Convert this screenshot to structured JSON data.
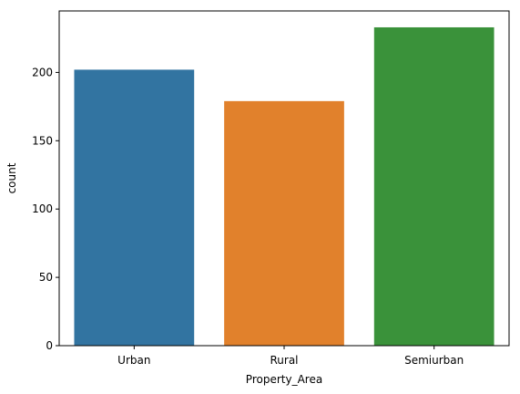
{
  "chart_data": {
    "type": "bar",
    "categories": [
      "Urban",
      "Rural",
      "Semiurban"
    ],
    "values": [
      202,
      179,
      233
    ],
    "colors": [
      "#3274a1",
      "#e1812c",
      "#3a923a"
    ],
    "xlabel": "Property_Area",
    "ylabel": "count",
    "ylim": [
      0,
      245
    ],
    "yticks": [
      0,
      50,
      100,
      150,
      200
    ],
    "grid": false,
    "legend": "none"
  }
}
